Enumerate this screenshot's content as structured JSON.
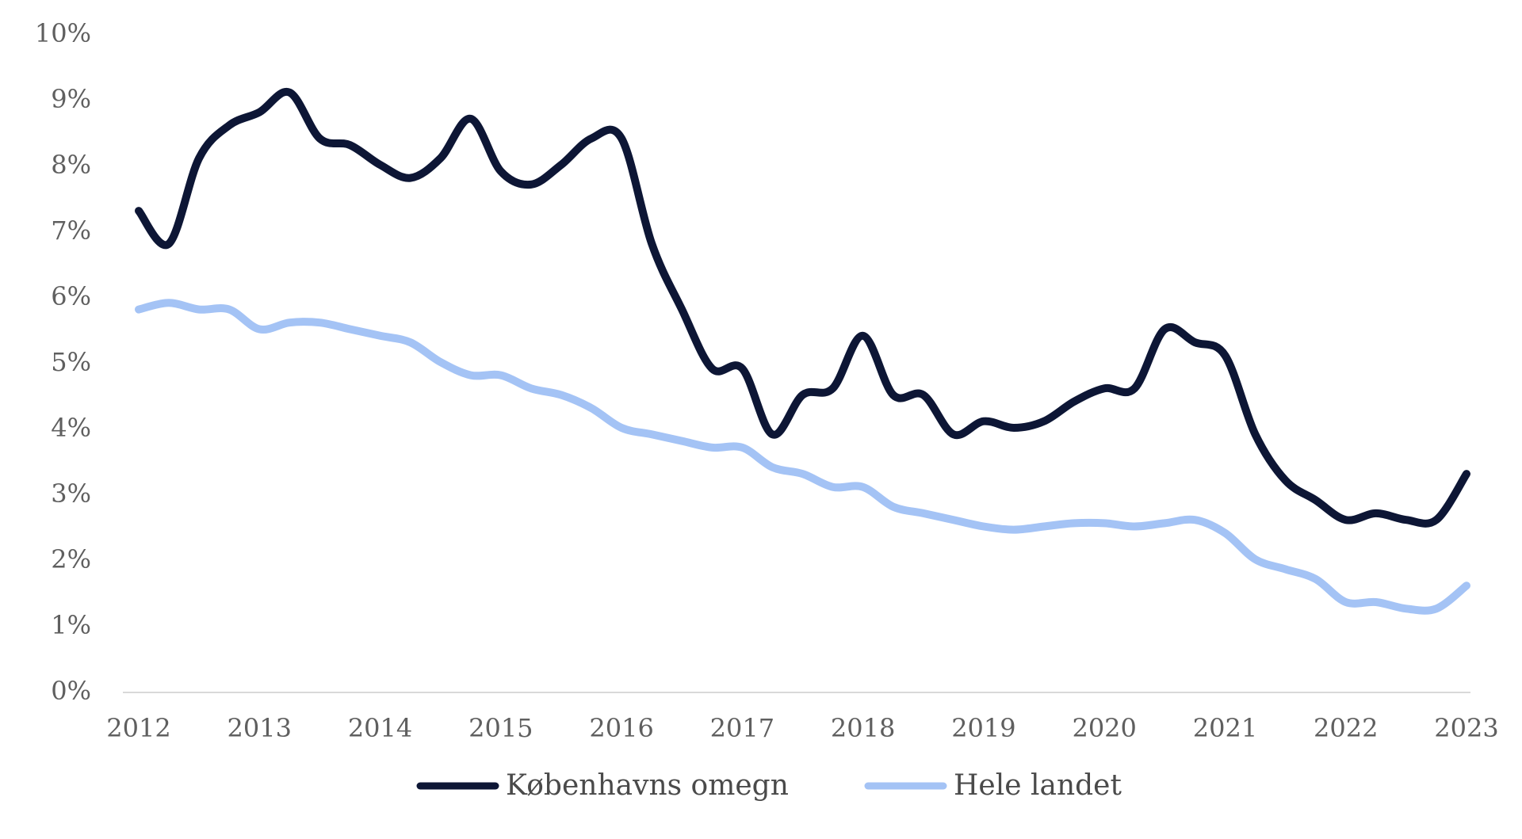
{
  "chart_data": {
    "type": "line",
    "title": "",
    "xlabel": "",
    "ylabel": "",
    "ylim": [
      0,
      10
    ],
    "xlim": [
      2012,
      2023
    ],
    "y_ticks": [
      "0%",
      "1%",
      "2%",
      "3%",
      "4%",
      "5%",
      "6%",
      "7%",
      "8%",
      "9%",
      "10%"
    ],
    "x_ticks": [
      "2012",
      "2013",
      "2014",
      "2015",
      "2016",
      "2017",
      "2018",
      "2019",
      "2020",
      "2021",
      "2022",
      "2023"
    ],
    "grid": false,
    "legend_position": "bottom",
    "series": [
      {
        "name": "Københavns omegn",
        "color": "#0d1635",
        "x": [
          2012.0,
          2012.25,
          2012.5,
          2012.75,
          2013.0,
          2013.25,
          2013.5,
          2013.75,
          2014.0,
          2014.25,
          2014.5,
          2014.75,
          2015.0,
          2015.25,
          2015.5,
          2015.75,
          2016.0,
          2016.25,
          2016.5,
          2016.75,
          2017.0,
          2017.25,
          2017.5,
          2017.75,
          2018.0,
          2018.25,
          2018.5,
          2018.75,
          2019.0,
          2019.25,
          2019.5,
          2019.75,
          2020.0,
          2020.25,
          2020.5,
          2020.75,
          2021.0,
          2021.25,
          2021.5,
          2021.75,
          2022.0,
          2022.25,
          2022.5,
          2022.75,
          2023.0
        ],
        "values": [
          7.3,
          6.8,
          8.1,
          8.6,
          8.8,
          9.1,
          8.4,
          8.3,
          8.0,
          7.8,
          8.1,
          8.7,
          7.9,
          7.7,
          8.0,
          8.4,
          8.4,
          6.8,
          5.8,
          4.9,
          4.9,
          3.9,
          4.5,
          4.6,
          5.4,
          4.5,
          4.5,
          3.9,
          4.1,
          4.0,
          4.1,
          4.4,
          4.6,
          4.6,
          5.5,
          5.3,
          5.1,
          3.9,
          3.2,
          2.9,
          2.6,
          2.7,
          2.6,
          2.6,
          3.3
        ]
      },
      {
        "name": "Hele landet",
        "color": "#a4c3f5",
        "x": [
          2012.0,
          2012.25,
          2012.5,
          2012.75,
          2013.0,
          2013.25,
          2013.5,
          2013.75,
          2014.0,
          2014.25,
          2014.5,
          2014.75,
          2015.0,
          2015.25,
          2015.5,
          2015.75,
          2016.0,
          2016.25,
          2016.5,
          2016.75,
          2017.0,
          2017.25,
          2017.5,
          2017.75,
          2018.0,
          2018.25,
          2018.5,
          2018.75,
          2019.0,
          2019.25,
          2019.5,
          2019.75,
          2020.0,
          2020.25,
          2020.5,
          2020.75,
          2021.0,
          2021.25,
          2021.5,
          2021.75,
          2022.0,
          2022.25,
          2022.5,
          2022.75,
          2023.0
        ],
        "values": [
          5.8,
          5.9,
          5.8,
          5.8,
          5.5,
          5.6,
          5.6,
          5.5,
          5.4,
          5.3,
          5.0,
          4.8,
          4.8,
          4.6,
          4.5,
          4.3,
          4.0,
          3.9,
          3.8,
          3.7,
          3.7,
          3.4,
          3.3,
          3.1,
          3.1,
          2.8,
          2.7,
          2.6,
          2.5,
          2.45,
          2.5,
          2.55,
          2.55,
          2.5,
          2.55,
          2.6,
          2.4,
          2.0,
          1.85,
          1.7,
          1.35,
          1.35,
          1.25,
          1.25,
          1.6
        ]
      }
    ]
  }
}
